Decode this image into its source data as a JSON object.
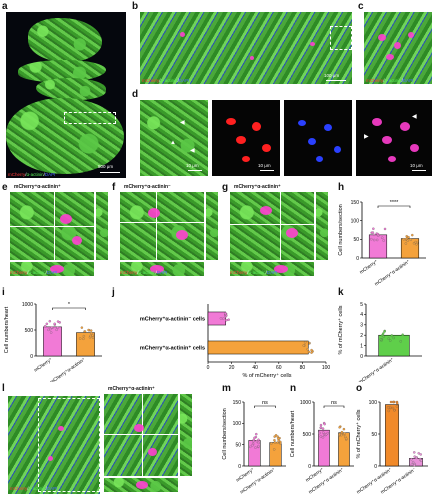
{
  "panel_letters": {
    "a": "a",
    "b": "b",
    "c": "c",
    "d": "d",
    "e": "e",
    "f": "f",
    "g": "g",
    "h": "h",
    "i": "i",
    "j": "j",
    "k": "k",
    "l": "l",
    "m": "m",
    "n": "n",
    "o": "o"
  },
  "channels": {
    "mcherry": "mCherry",
    "slash": "/",
    "actinin": "α-actinin",
    "dapi": "DAPI"
  },
  "scale_bars": {
    "a": "500 μm",
    "b": "100 μm",
    "c": "",
    "d1": "10 μm",
    "d2": "10 μm",
    "d3": "",
    "d4": "10 μm"
  },
  "titles": {
    "e": "mCherry⁺α-actinin⁺",
    "f": "mCherry⁺α-actinin⁻",
    "g": "mCherry⁺α-actinin⁺",
    "l": "mCherry⁺α-actinin⁺"
  },
  "icons": {
    "arrowhead": "arrowhead-icon"
  },
  "colors": {
    "mcherry": "#ff3b3b",
    "actinin": "#5cf25c",
    "dapi": "#4a6bff",
    "bar_pink": "#f17ad6",
    "bar_orange": "#f4a23c",
    "bar_green": "#5fcf4a",
    "bar_pink2": "#e890d8",
    "bar_orange2": "#f18a2a"
  },
  "chart_data": [
    {
      "panel": "h",
      "type": "bar",
      "ylabel": "Cell numbers/section",
      "categories": [
        "mCherry⁺",
        "mCherry⁺α-actinin⁺"
      ],
      "values": [
        62,
        52
      ],
      "ylim": [
        0,
        150
      ],
      "yticks": [
        0,
        50,
        100,
        150
      ],
      "significance": "****"
    },
    {
      "panel": "i",
      "type": "bar",
      "ylabel": "Cell numbers/heart",
      "categories": [
        "mCherry⁺",
        "mCherry⁺α-actinin⁺"
      ],
      "values": [
        560,
        450
      ],
      "ylim": [
        0,
        1000
      ],
      "yticks": [
        0,
        500,
        1000
      ],
      "significance": "*"
    },
    {
      "panel": "j",
      "type": "bar",
      "orientation": "horizontal",
      "xlabel": "% of mCherry⁺ cells",
      "categories": [
        "mCherry⁺α-actinin⁻ cells",
        "mCherry⁺α-actinin⁺ cells"
      ],
      "values": [
        15,
        85
      ],
      "xlim": [
        0,
        100
      ],
      "xticks": [
        0,
        20,
        40,
        60,
        80,
        100
      ]
    },
    {
      "panel": "k",
      "type": "bar",
      "ylabel": "% of mCherry⁺ cells",
      "categories": [
        "mCherry⁺α-actinin⁺"
      ],
      "values": [
        2.0
      ],
      "ylim": [
        0,
        5
      ],
      "yticks": [
        0,
        1,
        2,
        3,
        4,
        5
      ]
    },
    {
      "panel": "m",
      "type": "bar",
      "ylabel": "Cell numbers/section",
      "categories": [
        "mCherry⁺",
        "mCherry⁺α-actinin⁺"
      ],
      "values": [
        60,
        55
      ],
      "ylim": [
        0,
        150
      ],
      "yticks": [
        0,
        50,
        100,
        150
      ],
      "significance": "ns"
    },
    {
      "panel": "n",
      "type": "bar",
      "ylabel": "Cell numbers/heart",
      "categories": [
        "mCherry⁺",
        "mCherry⁺α-actinin⁺"
      ],
      "values": [
        560,
        520
      ],
      "ylim": [
        0,
        1000
      ],
      "yticks": [
        0,
        500,
        1000
      ],
      "significance": "ns"
    },
    {
      "panel": "o",
      "type": "bar",
      "ylabel": "% of mCherry⁺ cells",
      "categories": [
        "mCherry⁺α-actinin⁺",
        "mCherry⁺α-actinin⁻"
      ],
      "values": [
        96,
        12
      ],
      "ylim": [
        0,
        100
      ],
      "yticks": [
        0,
        50,
        100
      ]
    }
  ]
}
